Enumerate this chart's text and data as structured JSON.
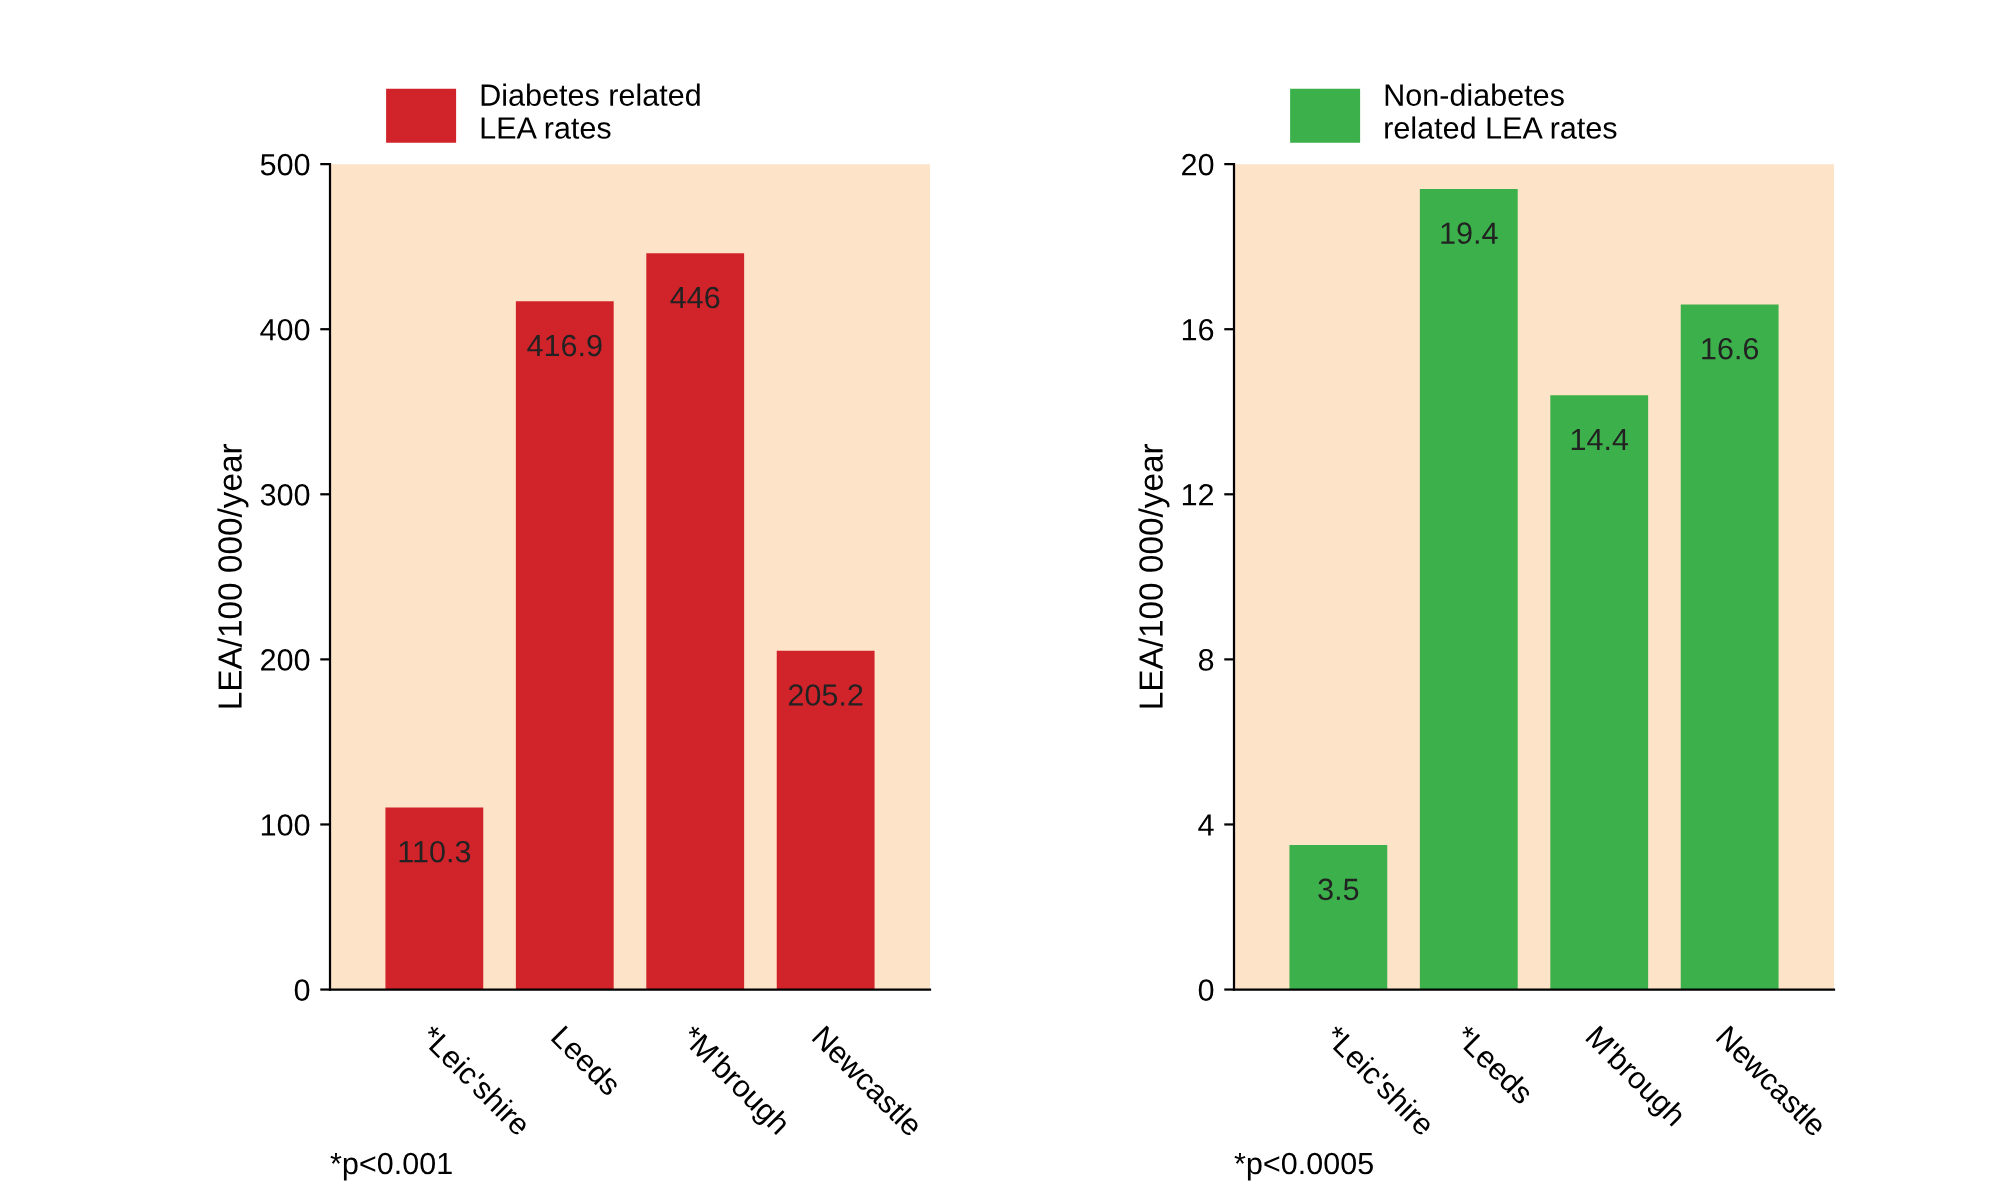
{
  "chart_data": [
    {
      "type": "bar",
      "ylabel": "LEA/100 000/year",
      "categories": [
        "*Leic'shire",
        "Leeds",
        "*M'brough",
        "Newcastle"
      ],
      "series": [
        {
          "name": "Diabetes related\nLEA rates",
          "color": "#d1232a",
          "values": [
            110.3,
            416.9,
            446,
            205.2
          ]
        }
      ],
      "data_labels": true,
      "ylim": [
        0,
        500
      ],
      "yticks": [
        0,
        100,
        200,
        300,
        400,
        500
      ],
      "legend": "top left",
      "grid": false,
      "annotations": [
        "*p<0.001"
      ]
    },
    {
      "type": "bar",
      "ylabel": "LEA/100 000/year",
      "categories": [
        "*Leic'shire",
        "*Leeds",
        "M'brough",
        "Newcastle"
      ],
      "series": [
        {
          "name": "Non-diabetes\nrelated LEA rates",
          "color": "#3cb04a",
          "values": [
            3.5,
            19.4,
            14.4,
            16.6
          ]
        }
      ],
      "data_labels": true,
      "ylim": [
        0,
        20
      ],
      "yticks": [
        0,
        4,
        8,
        12,
        16,
        20
      ],
      "legend": "top left",
      "grid": false,
      "annotations": [
        "*p<0.0005"
      ]
    }
  ]
}
